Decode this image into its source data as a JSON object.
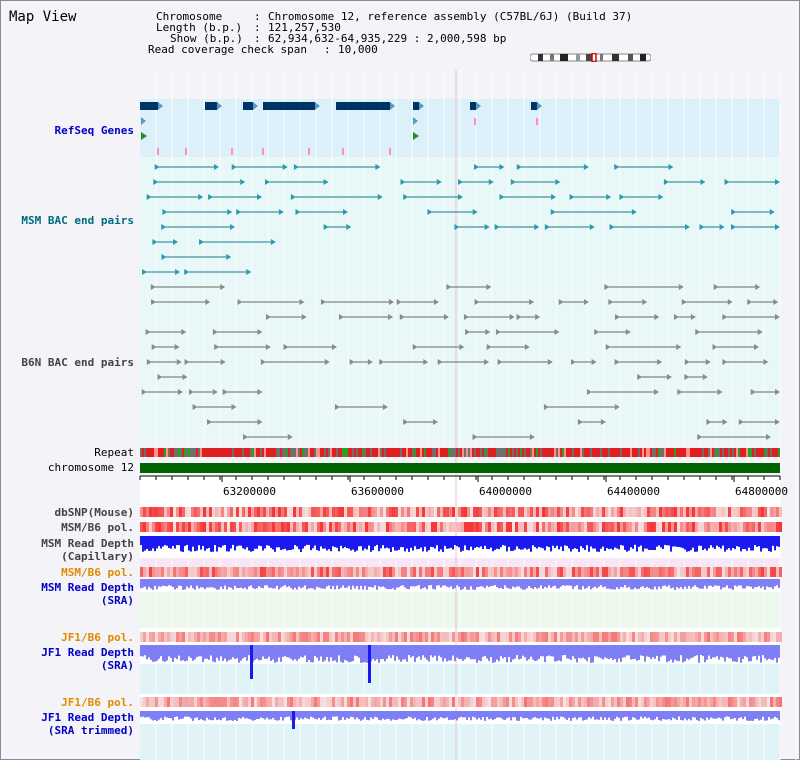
{
  "view": {
    "title": "Map View",
    "chromosome_label": "Chromosome",
    "chromosome_value": "Chromosome 12, reference assembly (C57BL/6J) (Build 37)",
    "length_label": "Length (b.p.)",
    "length_value": "121,257,530",
    "show_label": "Show (b.p.)",
    "show_value": "62,934,632-64,935,229 : 2,000,598 bp",
    "coverage_label": "Read coverage check span",
    "coverage_value": "10,000"
  },
  "tracks": {
    "refseq": "RefSeq Genes",
    "msm_bac": "MSM BAC end pairs",
    "b6n_bac": "B6N BAC end pairs",
    "repeat": "Repeat",
    "chromosome": "chromosome 12",
    "dbsnp": "dbSNP(Mouse)",
    "msm_b6_pol_1": "MSM/B6 pol.",
    "msm_depth_cap_1": "MSM Read Depth",
    "msm_depth_cap_2": "(Capillary)",
    "msm_b6_pol_2": "MSM/B6 pol.",
    "msm_depth_sra_1": "MSM Read Depth",
    "msm_depth_sra_2": "(SRA)",
    "jf1_b6_pol_1": "JF1/B6 pol.",
    "jf1_depth_sra_1": "JF1 Read Depth",
    "jf1_depth_sra_2": "(SRA)",
    "jf1_b6_pol_2": "JF1/B6 pol.",
    "jf1_depth_trim_1": "JF1 Read Depth",
    "jf1_depth_trim_2": "(SRA trimmed)"
  },
  "axis": {
    "ticks": [
      "63200000",
      "63600000",
      "64000000",
      "64400000",
      "64800000"
    ]
  },
  "colors": {
    "refseq_bg": "#dcf0fa",
    "bac_bg": "#e8f8f8",
    "gene": "#003366",
    "msm_pair": "#1a7a8a",
    "b6n_pair": "#666666",
    "chromosome": "#006400",
    "snp": "#e83030",
    "depth_dark": "#1a1af0",
    "depth_light": "#7f7ff5"
  }
}
